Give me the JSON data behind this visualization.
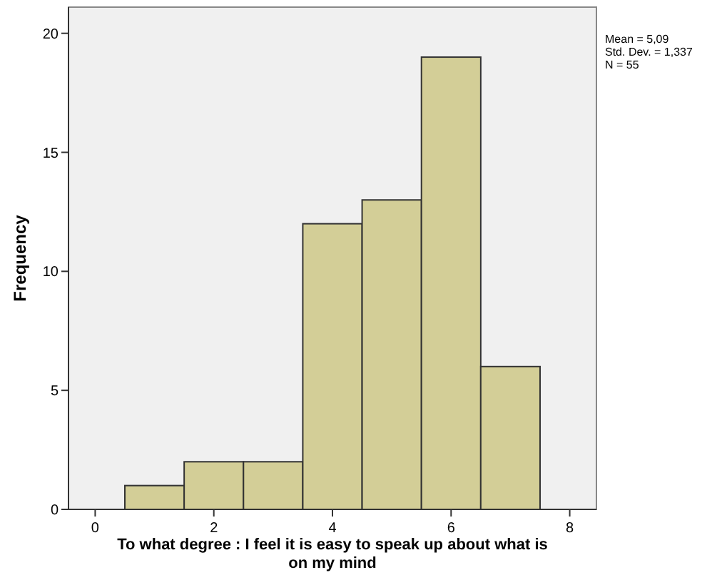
{
  "chart_data": {
    "type": "histogram",
    "xlabel": "To what degree : I feel it is easy to speak up about what is on my mind",
    "ylabel": "Frequency",
    "bins": [
      0.5,
      1.5,
      2.5,
      3.5,
      4.5,
      5.5,
      6.5,
      7.5
    ],
    "values": [
      1,
      2,
      2,
      12,
      13,
      19,
      6
    ],
    "color": "#d3ce97",
    "xlim": [
      -0.45,
      8.45
    ],
    "xticks": [
      0,
      2,
      4,
      6,
      8
    ],
    "ylim": [
      0,
      21.1
    ],
    "yticks": [
      0,
      5,
      10,
      15,
      20
    ],
    "annotations": [
      "Mean = 5,09",
      "Std. Dev. = 1,337",
      "N = 55"
    ]
  }
}
